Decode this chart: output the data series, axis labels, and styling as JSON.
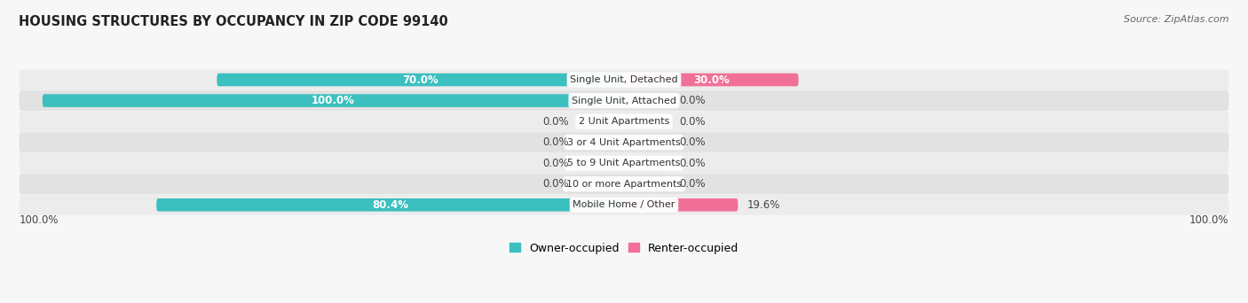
{
  "title": "HOUSING STRUCTURES BY OCCUPANCY IN ZIP CODE 99140",
  "source": "Source: ZipAtlas.com",
  "categories": [
    "Single Unit, Detached",
    "Single Unit, Attached",
    "2 Unit Apartments",
    "3 or 4 Unit Apartments",
    "5 to 9 Unit Apartments",
    "10 or more Apartments",
    "Mobile Home / Other"
  ],
  "owner_pct": [
    70.0,
    100.0,
    0.0,
    0.0,
    0.0,
    0.0,
    80.4
  ],
  "renter_pct": [
    30.0,
    0.0,
    0.0,
    0.0,
    0.0,
    0.0,
    19.6
  ],
  "owner_color": "#3bbfbf",
  "renter_color": "#f07098",
  "bar_bg_even": "#ececec",
  "bar_bg_odd": "#e2e2e2",
  "figsize": [
    14.06,
    3.42
  ],
  "dpi": 100,
  "legend_owner": "Owner-occupied",
  "legend_renter": "Renter-occupied",
  "bottom_left_label": "100.0%",
  "bottom_right_label": "100.0%"
}
